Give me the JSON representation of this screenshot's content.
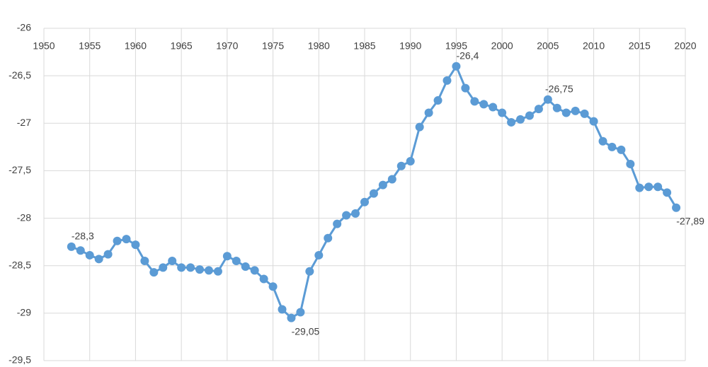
{
  "chart_data": {
    "type": "line",
    "x": [
      1953,
      1954,
      1955,
      1956,
      1957,
      1958,
      1959,
      1960,
      1961,
      1962,
      1963,
      1964,
      1965,
      1966,
      1967,
      1968,
      1969,
      1970,
      1971,
      1972,
      1973,
      1974,
      1975,
      1976,
      1977,
      1978,
      1979,
      1980,
      1981,
      1982,
      1983,
      1984,
      1985,
      1986,
      1987,
      1988,
      1989,
      1990,
      1991,
      1992,
      1993,
      1994,
      1995,
      1996,
      1997,
      1998,
      1999,
      2000,
      2001,
      2002,
      2003,
      2004,
      2005,
      2006,
      2007,
      2008,
      2009,
      2010,
      2011,
      2012,
      2013,
      2014,
      2015,
      2016,
      2017,
      2018,
      2019
    ],
    "series": [
      {
        "color": "#5b9bd5",
        "values": [
          -28.3,
          -28.34,
          -28.39,
          -28.43,
          -28.38,
          -28.24,
          -28.22,
          -28.28,
          -28.45,
          -28.57,
          -28.52,
          -28.45,
          -28.52,
          -28.52,
          -28.54,
          -28.55,
          -28.56,
          -28.4,
          -28.45,
          -28.51,
          -28.55,
          -28.64,
          -28.72,
          -28.96,
          -29.05,
          -28.99,
          -28.56,
          -28.39,
          -28.21,
          -28.06,
          -27.97,
          -27.95,
          -27.83,
          -27.74,
          -27.65,
          -27.59,
          -27.45,
          -27.4,
          -27.04,
          -26.89,
          -26.76,
          -26.55,
          -26.4,
          -26.63,
          -26.77,
          -26.8,
          -26.83,
          -26.89,
          -26.99,
          -26.96,
          -26.92,
          -26.85,
          -26.75,
          -26.84,
          -26.89,
          -26.87,
          -26.9,
          -26.98,
          -27.19,
          -27.25,
          -27.28,
          -27.43,
          -27.68,
          -27.67,
          -27.67,
          -27.73,
          -27.89
        ],
        "value_labels": [
          "-28,3",
          null,
          null,
          null,
          null,
          null,
          null,
          null,
          null,
          null,
          null,
          null,
          null,
          null,
          null,
          null,
          null,
          null,
          null,
          null,
          null,
          null,
          null,
          null,
          "-29,05",
          null,
          null,
          null,
          null,
          null,
          null,
          null,
          null,
          null,
          null,
          null,
          null,
          null,
          null,
          null,
          null,
          null,
          "-26,4",
          null,
          null,
          null,
          null,
          null,
          null,
          null,
          null,
          null,
          "-26,75",
          null,
          null,
          null,
          null,
          null,
          null,
          null,
          null,
          null,
          null,
          null,
          null,
          null,
          "-27,89"
        ]
      }
    ],
    "xlim": [
      1950,
      2020
    ],
    "xticks": [
      1950,
      1955,
      1960,
      1965,
      1970,
      1975,
      1980,
      1985,
      1990,
      1995,
      2000,
      2005,
      2010,
      2015,
      2020
    ],
    "ylim": [
      -29.5,
      -26
    ],
    "yticks": [
      -26,
      {
        "value": -26.5,
        "label": "-26,5"
      },
      -27,
      {
        "value": -27.5,
        "label": "-27,5"
      },
      -28,
      {
        "value": -28.5,
        "label": "-28,5"
      },
      -29,
      {
        "value": -29.5,
        "label": "-29,5"
      }
    ],
    "grid": true
  }
}
